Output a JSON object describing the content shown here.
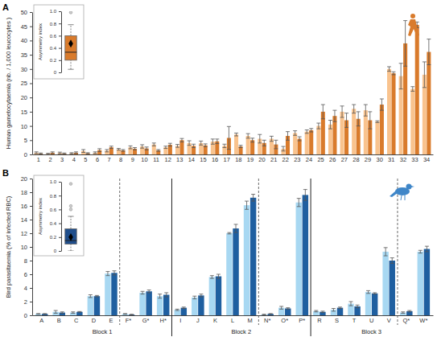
{
  "chart_data": [
    {
      "type": "bar",
      "panel_label": "A",
      "ylabel": "Human gametocytaemia (nb. / 1,000 leucocytes )",
      "categories": [
        "1",
        "2",
        "3",
        "4",
        "5",
        "6",
        "7",
        "8",
        "9",
        "10",
        "11",
        "12",
        "13",
        "14",
        "15",
        "16",
        "17",
        "18",
        "19",
        "20",
        "21",
        "22",
        "23",
        "24",
        "25",
        "26",
        "27",
        "28",
        "29",
        "30",
        "31",
        "32",
        "33",
        "34"
      ],
      "series": [
        {
          "color": "#f9c38e",
          "values": [
            0.6,
            0.2,
            0.5,
            0.4,
            1.2,
            0.6,
            1.3,
            1.8,
            2.5,
            2.8,
            3.5,
            2.5,
            3.0,
            4.0,
            4.0,
            4.5,
            3.0,
            7.0,
            6.5,
            5.5,
            5.5,
            2.0,
            7.5,
            8.0,
            10.0,
            10.5,
            15.0,
            16.0,
            15.5,
            11.5,
            30.0,
            27.5,
            23.0,
            28.0
          ],
          "errors": [
            0.3,
            0.2,
            0.3,
            0.2,
            0.5,
            0.3,
            0.4,
            0.3,
            0.5,
            0.6,
            0.5,
            0.4,
            0.5,
            0.8,
            0.7,
            0.9,
            0.6,
            0.5,
            0.8,
            1.5,
            0.9,
            0.8,
            0.8,
            0.6,
            1.0,
            1.5,
            2.0,
            1.5,
            2.0,
            0.3,
            0.8,
            4.5,
            0.8,
            4.5
          ]
        },
        {
          "color": "#d97b2c",
          "values": [
            0.3,
            0.6,
            0.3,
            0.6,
            0.4,
            1.5,
            2.5,
            1.4,
            2.0,
            2.1,
            1.4,
            3.4,
            5.0,
            3.0,
            3.2,
            4.6,
            5.8,
            2.8,
            5.0,
            4.0,
            3.5,
            6.5,
            5.5,
            8.5,
            15.0,
            13.5,
            12.0,
            12.5,
            12.0,
            17.5,
            28.5,
            39.0,
            45.5,
            36.0
          ],
          "errors": [
            0.2,
            0.3,
            0.2,
            0.3,
            0.2,
            0.5,
            0.4,
            0.3,
            0.4,
            0.5,
            0.3,
            0.5,
            0.6,
            0.6,
            0.5,
            0.8,
            4.0,
            0.4,
            0.7,
            1.0,
            1.5,
            1.5,
            0.7,
            0.6,
            2.5,
            2.0,
            2.5,
            2.5,
            3.0,
            2.0,
            0.5,
            8.0,
            1.0,
            4.5
          ]
        }
      ],
      "ylim": [
        0,
        50
      ],
      "yticks": [
        0,
        5,
        10,
        15,
        20,
        25,
        30,
        35,
        40,
        45,
        50
      ]
    },
    {
      "type": "box",
      "ylabel": "Asymmetry index",
      "tick_labels": "y",
      "ylim": [
        0,
        1
      ],
      "yticks": [
        0,
        0.2,
        0.4,
        0.6,
        0.8,
        {
          "value": 1,
          "label": "1.0"
        }
      ],
      "boxes": [
        {
          "whisker_low": 0.05,
          "q1": 0.2,
          "median": 0.33,
          "q3": 0.6,
          "whisker_high": 0.78,
          "mean": 0.47,
          "outliers": [
            0.98
          ],
          "color": "#d97b2c"
        }
      ]
    },
    {
      "type": "bar",
      "panel_label": "B",
      "ylabel": "Bird parasitaemia (% of infected RBC)",
      "categories": [
        "A",
        "B",
        "C",
        "D",
        "E",
        "F*",
        "G*",
        "H*",
        "I",
        "J",
        "K",
        "L",
        "M",
        "N*",
        "O*",
        "P*",
        "R",
        "S",
        "T",
        "U",
        "V",
        "Q*",
        "W*"
      ],
      "series": [
        {
          "color": "#a8d8f2",
          "values": [
            0.2,
            0.5,
            0.4,
            2.8,
            6.1,
            0.2,
            3.3,
            2.8,
            0.8,
            2.6,
            5.6,
            12.0,
            16.1,
            0.1,
            1.1,
            16.5,
            0.6,
            0.8,
            1.7,
            3.4,
            9.3,
            0.4,
            9.3
          ],
          "errors": [
            0.05,
            0.2,
            0.1,
            0.2,
            0.3,
            0.05,
            0.2,
            0.3,
            0.1,
            0.2,
            0.2,
            0.1,
            0.6,
            0.05,
            0.2,
            0.6,
            0.1,
            0.2,
            0.3,
            0.2,
            0.6,
            0.1,
            0.2
          ]
        },
        {
          "color": "#1f5fa0",
          "values": [
            0.2,
            0.4,
            0.5,
            2.8,
            6.2,
            0.1,
            3.5,
            3.0,
            1.1,
            2.9,
            5.7,
            12.7,
            17.2,
            0.2,
            1.0,
            17.6,
            0.5,
            1.1,
            1.3,
            3.2,
            8.0,
            0.6,
            9.7
          ],
          "errors": [
            0.05,
            0.1,
            0.05,
            0.1,
            0.3,
            0.05,
            0.2,
            0.3,
            0.1,
            0.2,
            0.3,
            0.6,
            0.5,
            0.05,
            0.1,
            0.8,
            0.1,
            0.1,
            0.2,
            0.1,
            0.4,
            0.1,
            0.4
          ]
        }
      ],
      "groups": [
        {
          "label": "Block 1",
          "subgroups": [
            [
              "A",
              "B",
              "C",
              "D",
              "E"
            ],
            [
              "F*",
              "G*",
              "H*"
            ]
          ]
        },
        {
          "label": "Block 2",
          "subgroups": [
            [
              "I",
              "J",
              "K",
              "L",
              "M"
            ],
            [
              "N*",
              "O*",
              "P*"
            ]
          ]
        },
        {
          "label": "Block 3",
          "subgroups": [
            [
              "R",
              "S",
              "T",
              "U",
              "V"
            ],
            [
              "Q*",
              "W*"
            ]
          ]
        }
      ],
      "ylim": [
        0,
        20
      ],
      "yticks": [
        0,
        2,
        4,
        6,
        8,
        10,
        12,
        14,
        16,
        18,
        20
      ]
    },
    {
      "type": "box",
      "ylabel": "Asymmetry index",
      "tick_labels": "y",
      "ylim": [
        0,
        1
      ],
      "yticks": [
        0,
        0.2,
        0.4,
        0.6,
        0.8,
        {
          "value": 1,
          "label": "1.0"
        }
      ],
      "boxes": [
        {
          "whisker_low": 0.0,
          "q1": 0.1,
          "median": 0.15,
          "q3": 0.32,
          "whisker_high": 0.5,
          "mean": 0.2,
          "outliers": [
            0.6,
            0.65,
            0.97
          ],
          "color": "#1f4e8c"
        }
      ]
    }
  ]
}
